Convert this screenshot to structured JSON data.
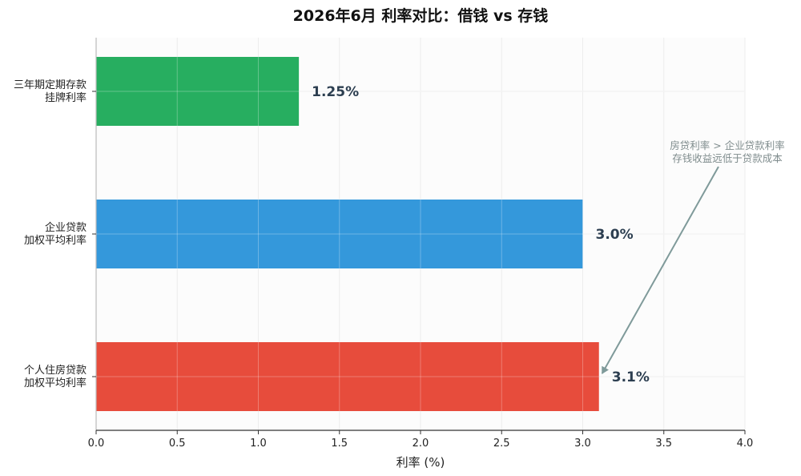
{
  "chart_data": {
    "type": "bar",
    "orientation": "horizontal",
    "title": "2026年6月 利率对比：借钱 vs 存钱",
    "xlabel": "利率 (%)",
    "ylabel": "",
    "xlim": [
      0,
      4
    ],
    "xticks": [
      "0.0",
      "0.5",
      "1.0",
      "1.5",
      "2.0",
      "2.5",
      "3.0",
      "3.5",
      "4.0"
    ],
    "grid": true,
    "categories": [
      [
        "三年期定期存款",
        "挂牌利率"
      ],
      [
        "企业贷款",
        "加权平均利率"
      ],
      [
        "个人住房贷款",
        "加权平均利率"
      ]
    ],
    "values": [
      1.25,
      3.0,
      3.1
    ],
    "data_labels": [
      "1.25%",
      "3.0%",
      "3.1%"
    ],
    "colors": [
      "#27ae60",
      "#3498db",
      "#e74c3c"
    ],
    "annotation": {
      "lines": [
        "房贷利率 > 企业贷款利率",
        "存钱收益远低于贷款成本"
      ],
      "points_to_bar": 2
    }
  }
}
